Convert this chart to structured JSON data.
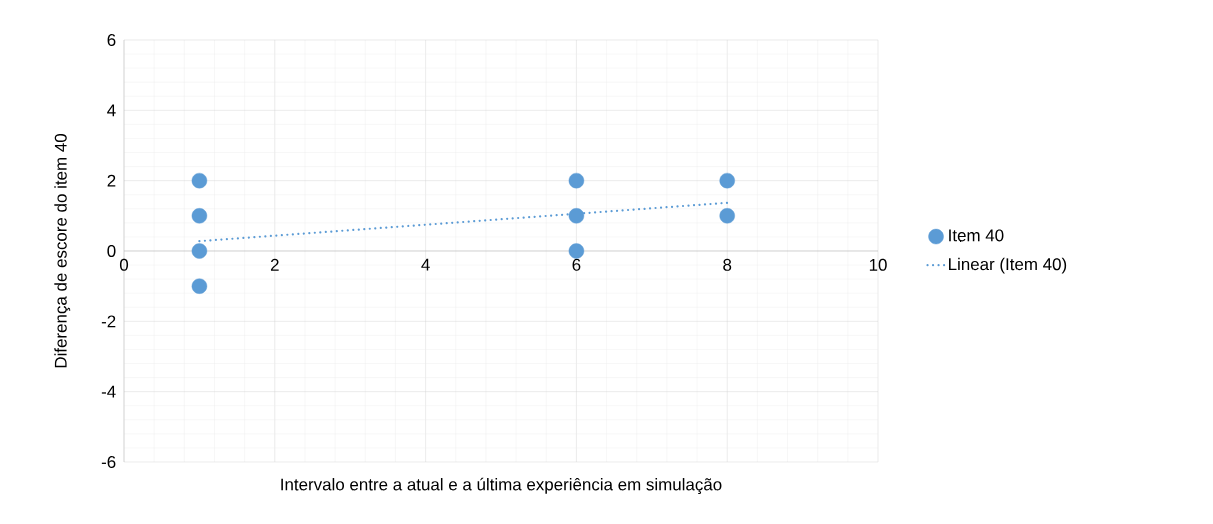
{
  "chart_data": {
    "type": "scatter",
    "xlabel": "Intervalo entre a atual e a última experiência em simulação",
    "ylabel": "Diferença de escore do item 40",
    "xlim": [
      0,
      10
    ],
    "ylim": [
      -6,
      6
    ],
    "xticks": [
      0,
      2,
      4,
      6,
      8,
      10
    ],
    "yticks": [
      -6,
      -4,
      -2,
      0,
      2,
      4,
      6
    ],
    "grid": true,
    "legend": "right",
    "series": [
      {
        "name": "Item 40",
        "color": "#5b9bd5",
        "marker": "circle",
        "x": [
          1,
          1,
          1,
          1,
          6,
          6,
          6,
          8,
          8
        ],
        "values": [
          2,
          1,
          0,
          -1,
          2,
          1,
          0,
          2,
          1
        ]
      },
      {
        "name": "Linear (Item 40)",
        "type": "line",
        "color": "#5b9bd5",
        "marker": "none",
        "line_style": "dotted",
        "x": [
          1,
          8
        ],
        "values": [
          0.28,
          1.37
        ]
      }
    ]
  }
}
